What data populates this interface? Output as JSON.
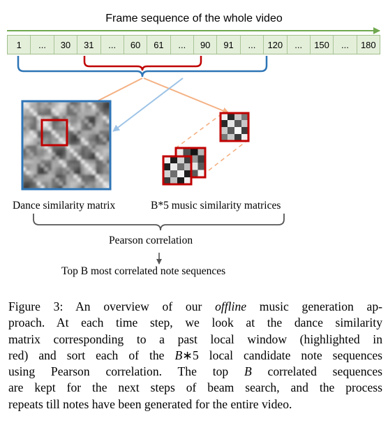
{
  "frame_sequence": {
    "title": "Frame sequence of the whole video",
    "cells": [
      "1",
      "...",
      "30",
      "31",
      "...",
      "60",
      "61",
      "...",
      "90",
      "91",
      "...",
      "120",
      "...",
      "150",
      "...",
      "180"
    ]
  },
  "labels": {
    "dance_matrix": "Dance similarity matrix",
    "music_matrices": "B*5 music similarity matrices",
    "pearson": "Pearson correlation",
    "top_b": "Top B most correlated note sequences"
  },
  "caption": {
    "l1a": "Figure 3:  An overview of our ",
    "l1b": "offline",
    "l1c": " music generation ap-",
    "l2": "proach.  At each time step, we look at the dance similarity",
    "l3": "matrix corresponding to a past local window (highlighted in",
    "l4a": "red) and sort each of the ",
    "l4b": "B",
    "l4c": "∗5 local candidate note sequences",
    "l5a": "using Pearson correlation. The top ",
    "l5b": "B",
    "l5c": " correlated sequences",
    "l6": "are kept for the next steps of beam search, and the process",
    "l7": "repeats till notes have been generated for the entire video."
  },
  "colors": {
    "arrow_green": "#70a84f",
    "bar_fill": "#e4efda",
    "brace_blue": "#2e75b6",
    "highlight_red": "#c00000",
    "connector_orange": "#f4b183",
    "connector_blue": "#9dc3e6"
  }
}
